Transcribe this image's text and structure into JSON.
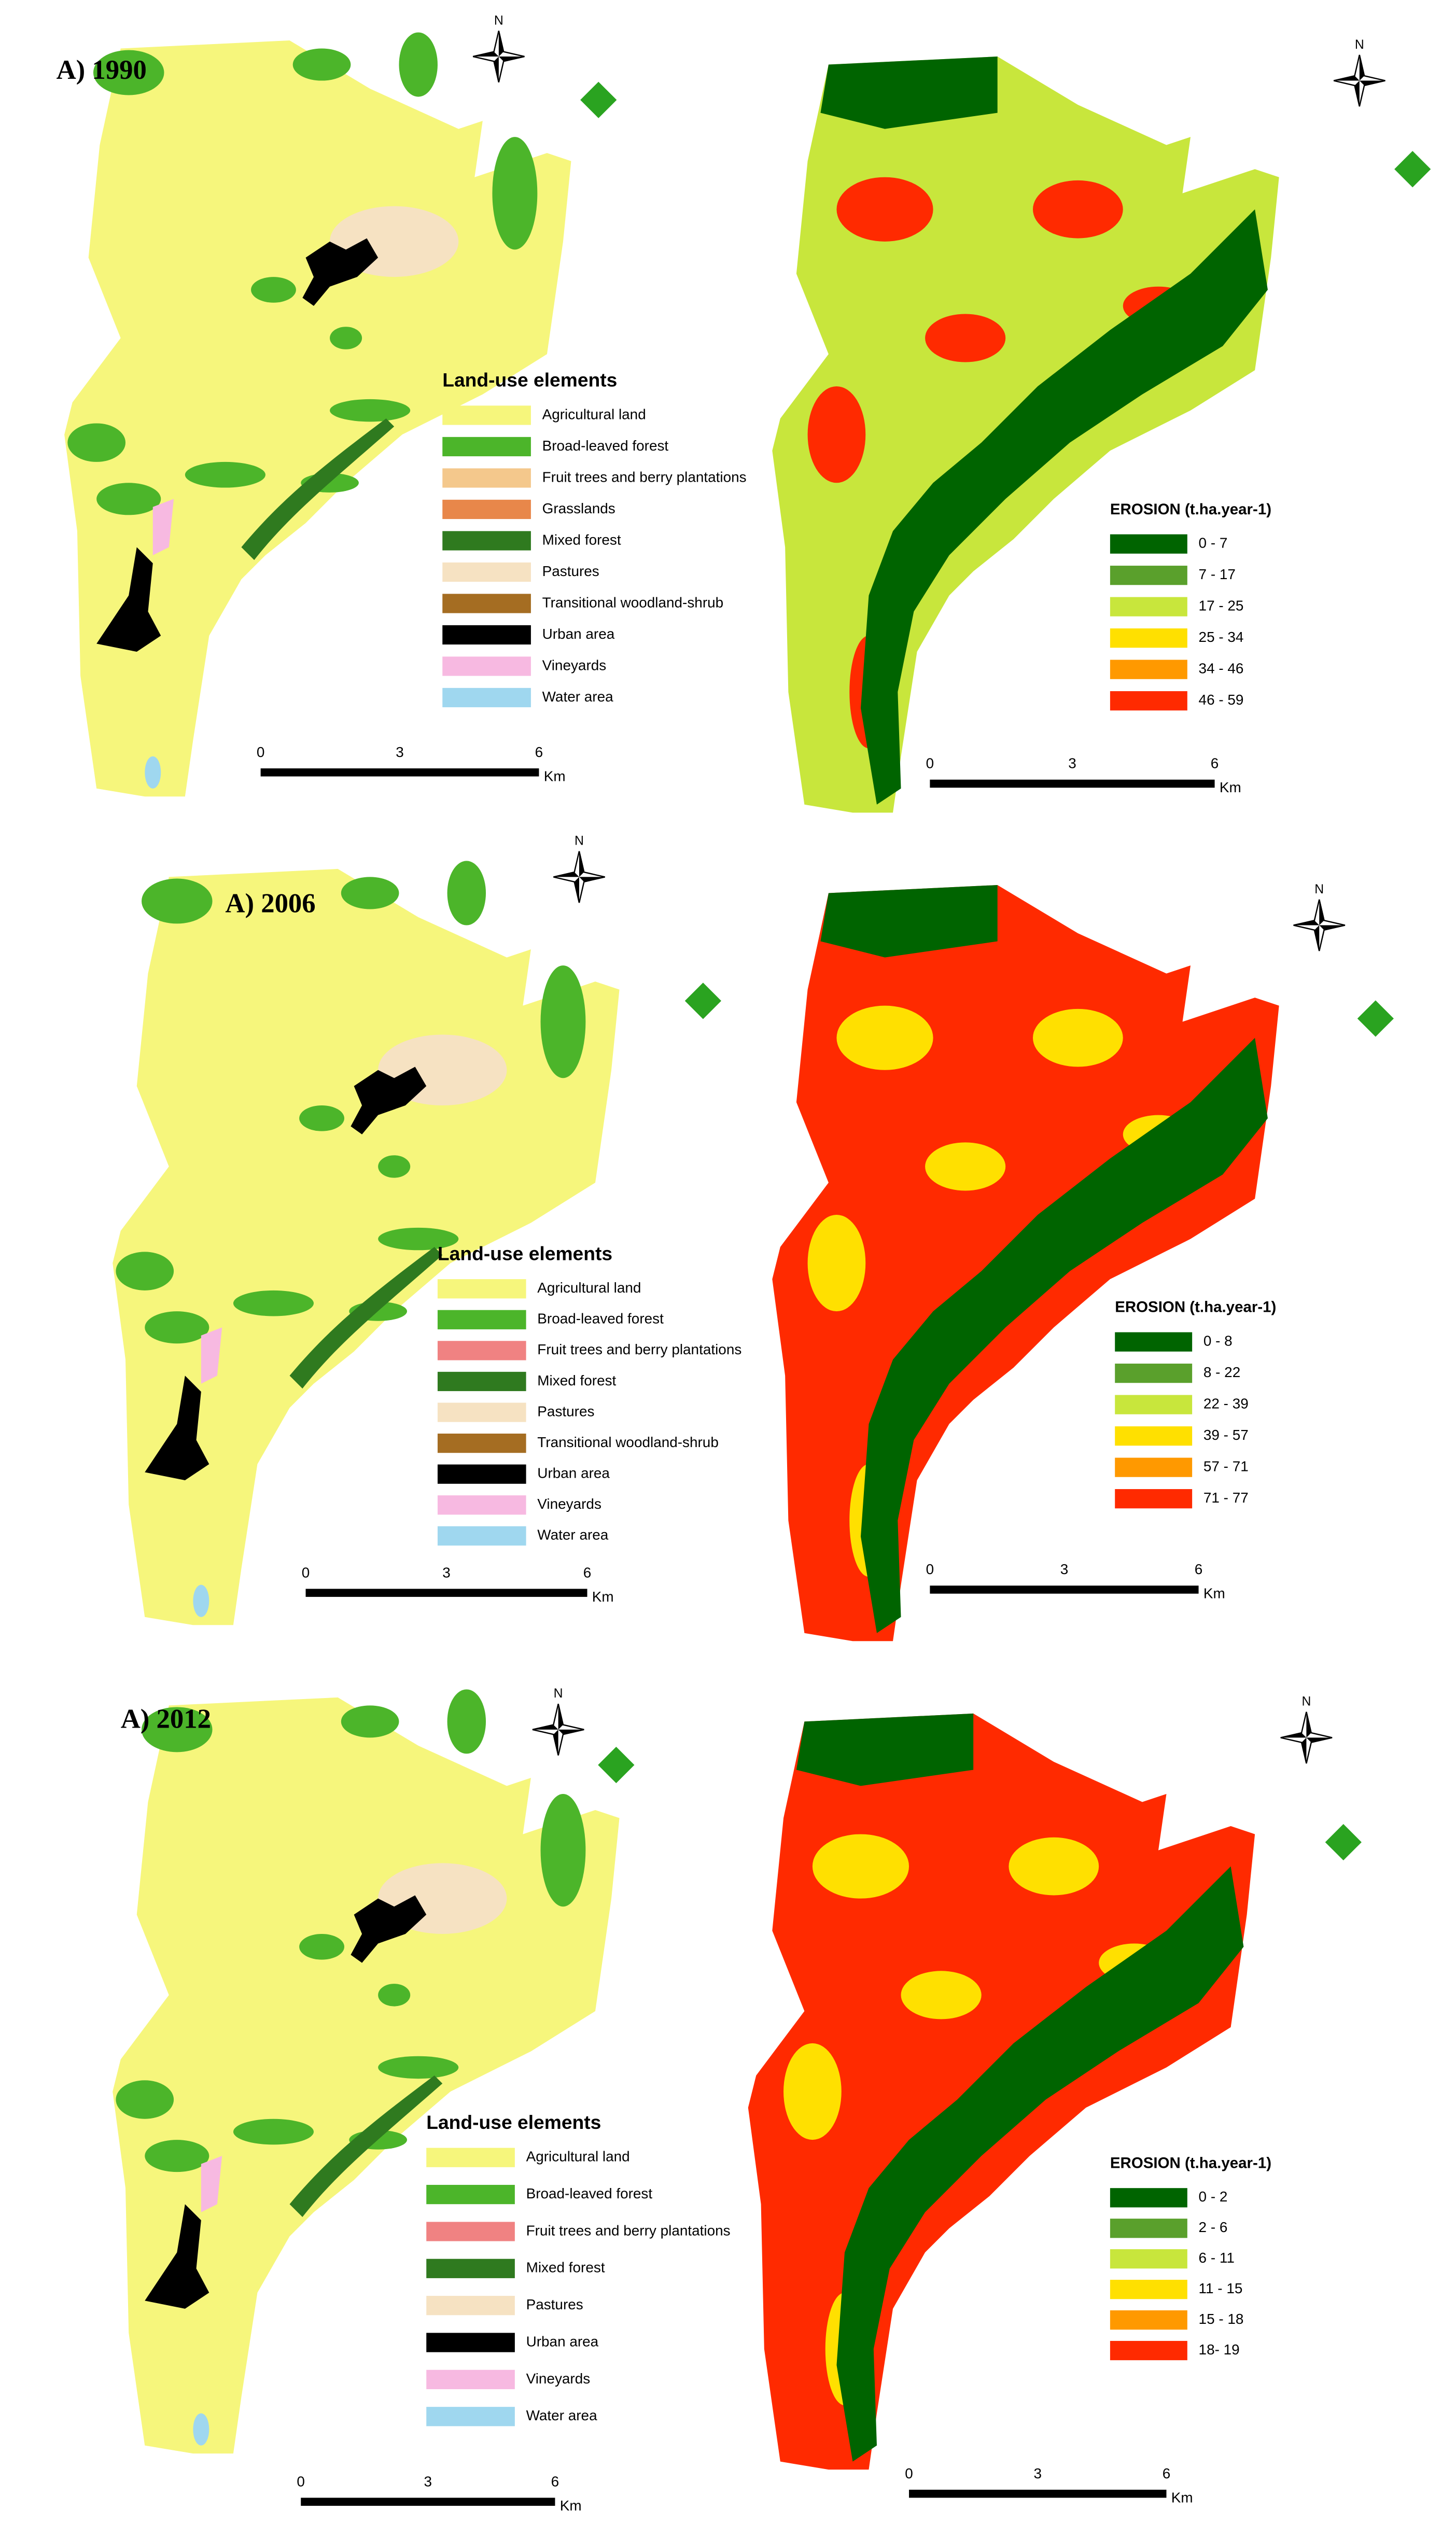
{
  "panels": [
    {
      "title": "A) 1990",
      "land_use": {
        "legend_title": "Land-use elements",
        "items": [
          {
            "label": "Agricultural land",
            "color": "#f6f67c"
          },
          {
            "label": "Broad-leaved forest",
            "color": "#4cb52a"
          },
          {
            "label": "Fruit trees and berry plantations",
            "color": "#f4c88c"
          },
          {
            "label": "Grasslands",
            "color": "#e8874a"
          },
          {
            "label": "Mixed forest",
            "color": "#2f7a1f"
          },
          {
            "label": "Pastures",
            "color": "#f6e2c2"
          },
          {
            "label": "Transitional woodland-shrub",
            "color": "#a56d22"
          },
          {
            "label": "Urban area",
            "color": "#000000"
          },
          {
            "label": "Vineyards",
            "color": "#f7b9e1"
          },
          {
            "label": "Water area",
            "color": "#9fd7ef"
          }
        ]
      },
      "erosion": {
        "legend_title": "EROSION (t.ha.year-1)",
        "classes": [
          {
            "label": "0 - 7",
            "color": "#006400"
          },
          {
            "label": "7 - 17",
            "color": "#5aa02c"
          },
          {
            "label": "17 - 25",
            "color": "#c8e63c"
          },
          {
            "label": "25 - 34",
            "color": "#ffe000"
          },
          {
            "label": "34 - 46",
            "color": "#ff9900"
          },
          {
            "label": "46 - 59",
            "color": "#ff2a00"
          }
        ]
      },
      "scale": {
        "ticks": [
          "0",
          "3",
          "6"
        ],
        "unit": "Km"
      },
      "north": "N"
    },
    {
      "title": "A) 2006",
      "land_use": {
        "legend_title": "Land-use elements",
        "items": [
          {
            "label": "Agricultural land",
            "color": "#f6f67c"
          },
          {
            "label": "Broad-leaved forest",
            "color": "#4cb52a"
          },
          {
            "label": "Fruit trees and berry plantations",
            "color": "#f08282"
          },
          {
            "label": "Mixed forest",
            "color": "#2f7a1f"
          },
          {
            "label": "Pastures",
            "color": "#f6e2c2"
          },
          {
            "label": "Transitional woodland-shrub",
            "color": "#a56d22"
          },
          {
            "label": "Urban area",
            "color": "#000000"
          },
          {
            "label": "Vineyards",
            "color": "#f7b9e1"
          },
          {
            "label": "Water area",
            "color": "#9fd7ef"
          }
        ]
      },
      "erosion": {
        "legend_title": "EROSION (t.ha.year-1)",
        "classes": [
          {
            "label": "0 - 8",
            "color": "#006400"
          },
          {
            "label": "8 - 22",
            "color": "#5aa02c"
          },
          {
            "label": "22 - 39",
            "color": "#c8e63c"
          },
          {
            "label": "39 - 57",
            "color": "#ffe000"
          },
          {
            "label": "57 - 71",
            "color": "#ff9900"
          },
          {
            "label": "71 - 77",
            "color": "#ff2a00"
          }
        ]
      },
      "scale": {
        "ticks": [
          "0",
          "3",
          "6"
        ],
        "unit": "Km"
      },
      "north": "N"
    },
    {
      "title": "A) 2012",
      "land_use": {
        "legend_title": "Land-use elements",
        "items": [
          {
            "label": "Agricultural land",
            "color": "#f6f67c"
          },
          {
            "label": "Broad-leaved forest",
            "color": "#4cb52a"
          },
          {
            "label": "Fruit trees and berry plantations",
            "color": "#f08282"
          },
          {
            "label": "Mixed forest",
            "color": "#2f7a1f"
          },
          {
            "label": "Pastures",
            "color": "#f6e2c2"
          },
          {
            "label": "Urban area",
            "color": "#000000"
          },
          {
            "label": "Vineyards",
            "color": "#f7b9e1"
          },
          {
            "label": "Water area",
            "color": "#9fd7ef"
          }
        ]
      },
      "erosion": {
        "legend_title": "EROSION (t.ha.year-1)",
        "classes": [
          {
            "label": "0 - 2",
            "color": "#006400"
          },
          {
            "label": "2 - 6",
            "color": "#5aa02c"
          },
          {
            "label": "6 - 11",
            "color": "#c8e63c"
          },
          {
            "label": "11 - 15",
            "color": "#ffe000"
          },
          {
            "label": "15 - 18",
            "color": "#ff9900"
          },
          {
            "label": "18- 19",
            "color": "#ff2a00"
          }
        ]
      },
      "scale": {
        "ticks": [
          "0",
          "3",
          "6"
        ],
        "unit": "Km"
      },
      "north": "N"
    }
  ]
}
